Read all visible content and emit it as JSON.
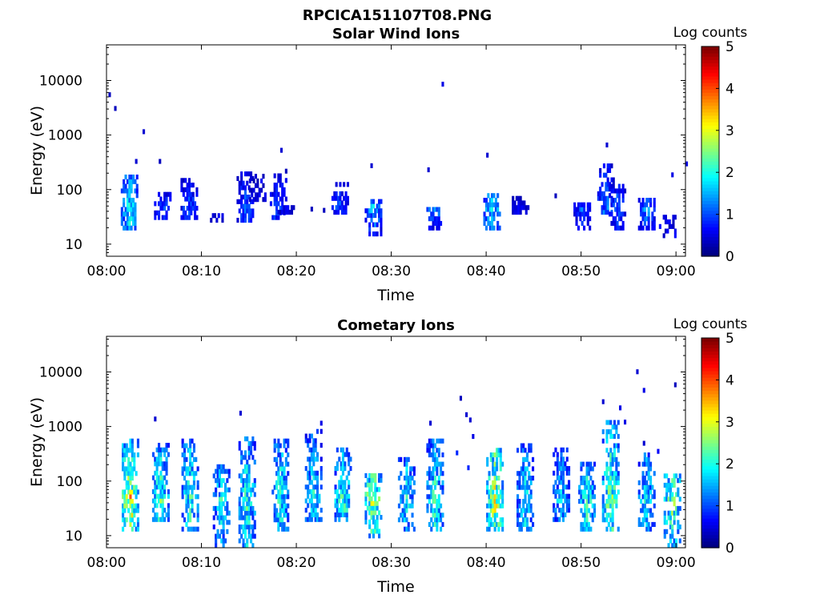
{
  "figure_title": "RPCICA151107T08.PNG",
  "chart_data": [
    {
      "type": "heatmap",
      "title": "Solar Wind Ions",
      "xlabel": "Time",
      "ylabel": "Energy (eV)",
      "yscale": "log",
      "ylim": [
        6,
        45000
      ],
      "xlim": [
        "08:00",
        "09:01"
      ],
      "xticks": [
        "08:00",
        "08:10",
        "08:20",
        "08:30",
        "08:40",
        "08:50",
        "09:00"
      ],
      "yticks": [
        "10",
        "100",
        "1000",
        "10000"
      ],
      "colorbar": {
        "label": "Log counts",
        "min": 0,
        "max": 5,
        "ticks": [
          "0",
          "1",
          "2",
          "3",
          "4",
          "5"
        ],
        "colormap": "jet"
      },
      "bursts": [
        {
          "t": 2.3,
          "e_lo": 18,
          "e_hi": 180,
          "c": 1.8
        },
        {
          "t": 5.8,
          "e_lo": 28,
          "e_hi": 80,
          "c": 1.0
        },
        {
          "t": 8.6,
          "e_lo": 28,
          "e_hi": 140,
          "c": 1.0
        },
        {
          "t": 11.7,
          "e_lo": 25,
          "e_hi": 32,
          "c": 0.6
        },
        {
          "t": 14.5,
          "e_lo": 25,
          "e_hi": 180,
          "c": 1.0
        },
        {
          "t": 15.8,
          "e_lo": 60,
          "e_hi": 180,
          "c": 0.7
        },
        {
          "t": 18.0,
          "e_lo": 28,
          "e_hi": 200,
          "c": 1.0
        },
        {
          "t": 18.8,
          "e_lo": 35,
          "e_hi": 45,
          "c": 0.6
        },
        {
          "t": 24.5,
          "e_lo": 35,
          "e_hi": 120,
          "c": 1.0
        },
        {
          "t": 28.0,
          "e_lo": 14,
          "e_hi": 60,
          "c": 1.5
        },
        {
          "t": 34.5,
          "e_lo": 18,
          "e_hi": 45,
          "c": 1.3
        },
        {
          "t": 40.5,
          "e_lo": 18,
          "e_hi": 85,
          "c": 1.8
        },
        {
          "t": 43.5,
          "e_lo": 35,
          "e_hi": 65,
          "c": 0.6
        },
        {
          "t": 50.0,
          "e_lo": 18,
          "e_hi": 50,
          "c": 1.0
        },
        {
          "t": 52.5,
          "e_lo": 35,
          "e_hi": 300,
          "c": 1.2
        },
        {
          "t": 53.7,
          "e_lo": 18,
          "e_hi": 120,
          "c": 1.0
        },
        {
          "t": 56.8,
          "e_lo": 18,
          "e_hi": 60,
          "c": 1.3
        },
        {
          "t": 59.0,
          "e_lo": 13,
          "e_hi": 32,
          "c": 0.8
        }
      ],
      "specks": [
        [
          0.2,
          5000,
          0.3
        ],
        [
          0.8,
          2800,
          0.3
        ],
        [
          3.8,
          1050,
          0.4
        ],
        [
          35.3,
          7800,
          0.5
        ],
        [
          40.0,
          390,
          0.4
        ],
        [
          52.6,
          600,
          0.4
        ],
        [
          61.0,
          270,
          0.5
        ],
        [
          18.3,
          480,
          0.4
        ],
        [
          5.5,
          300,
          0.3
        ],
        [
          3.0,
          300,
          0.4
        ],
        [
          33.8,
          210,
          0.4
        ],
        [
          27.8,
          250,
          0.4
        ],
        [
          47.2,
          70,
          0.3
        ],
        [
          21.5,
          40,
          0.3
        ],
        [
          22.8,
          38,
          0.3
        ],
        [
          59.5,
          170,
          0.5
        ]
      ]
    },
    {
      "type": "heatmap",
      "title": "Cometary Ions",
      "xlabel": "Time",
      "ylabel": "Energy (eV)",
      "yscale": "log",
      "ylim": [
        6,
        45000
      ],
      "xlim": [
        "08:00",
        "09:01"
      ],
      "xticks": [
        "08:00",
        "08:10",
        "08:20",
        "08:30",
        "08:40",
        "08:50",
        "09:00"
      ],
      "yticks": [
        "10",
        "100",
        "1000",
        "10000"
      ],
      "colorbar": {
        "label": "Log counts",
        "min": 0,
        "max": 5,
        "ticks": [
          "0",
          "1",
          "2",
          "3",
          "4",
          "5"
        ],
        "colormap": "jet"
      },
      "bursts": [
        {
          "t": 2.4,
          "e_lo": 12,
          "e_hi": 600,
          "c": 3.0
        },
        {
          "t": 5.6,
          "e_lo": 18,
          "e_hi": 450,
          "c": 2.2
        },
        {
          "t": 8.7,
          "e_lo": 12,
          "e_hi": 600,
          "c": 2.0
        },
        {
          "t": 12.0,
          "e_lo": 6,
          "e_hi": 200,
          "c": 1.8
        },
        {
          "t": 14.7,
          "e_lo": 6,
          "e_hi": 600,
          "c": 2.0
        },
        {
          "t": 18.2,
          "e_lo": 12,
          "e_hi": 500,
          "c": 2.0
        },
        {
          "t": 21.7,
          "e_lo": 18,
          "e_hi": 900,
          "c": 1.8
        },
        {
          "t": 24.8,
          "e_lo": 18,
          "e_hi": 400,
          "c": 2.2
        },
        {
          "t": 28.0,
          "e_lo": 9,
          "e_hi": 120,
          "c": 2.8
        },
        {
          "t": 31.5,
          "e_lo": 12,
          "e_hi": 250,
          "c": 1.8
        },
        {
          "t": 34.5,
          "e_lo": 12,
          "e_hi": 550,
          "c": 2.0
        },
        {
          "t": 40.8,
          "e_lo": 12,
          "e_hi": 400,
          "c": 2.8
        },
        {
          "t": 44.0,
          "e_lo": 12,
          "e_hi": 420,
          "c": 1.8
        },
        {
          "t": 47.8,
          "e_lo": 18,
          "e_hi": 400,
          "c": 1.6
        },
        {
          "t": 50.5,
          "e_lo": 12,
          "e_hi": 200,
          "c": 2.0
        },
        {
          "t": 53.0,
          "e_lo": 12,
          "e_hi": 1300,
          "c": 2.4
        },
        {
          "t": 56.8,
          "e_lo": 12,
          "e_hi": 300,
          "c": 1.8
        },
        {
          "t": 59.5,
          "e_lo": 6,
          "e_hi": 120,
          "c": 2.4
        }
      ],
      "specks": [
        [
          55.8,
          9200,
          0.4
        ],
        [
          56.5,
          4200,
          0.5
        ],
        [
          59.8,
          5300,
          0.3
        ],
        [
          37.2,
          3000,
          0.3
        ],
        [
          37.8,
          1500,
          0.4
        ],
        [
          38.2,
          1200,
          0.4
        ],
        [
          38.5,
          600,
          0.5
        ],
        [
          52.2,
          2600,
          0.4
        ],
        [
          54.0,
          2000,
          0.5
        ],
        [
          54.5,
          1100,
          0.5
        ],
        [
          34.0,
          1050,
          0.4
        ],
        [
          14.0,
          1600,
          0.4
        ],
        [
          5.0,
          1250,
          0.4
        ],
        [
          22.5,
          1050,
          0.5
        ],
        [
          36.8,
          300,
          0.8
        ],
        [
          38.0,
          160,
          0.8
        ],
        [
          58.0,
          320,
          0.6
        ],
        [
          56.5,
          450,
          0.4
        ]
      ]
    }
  ]
}
